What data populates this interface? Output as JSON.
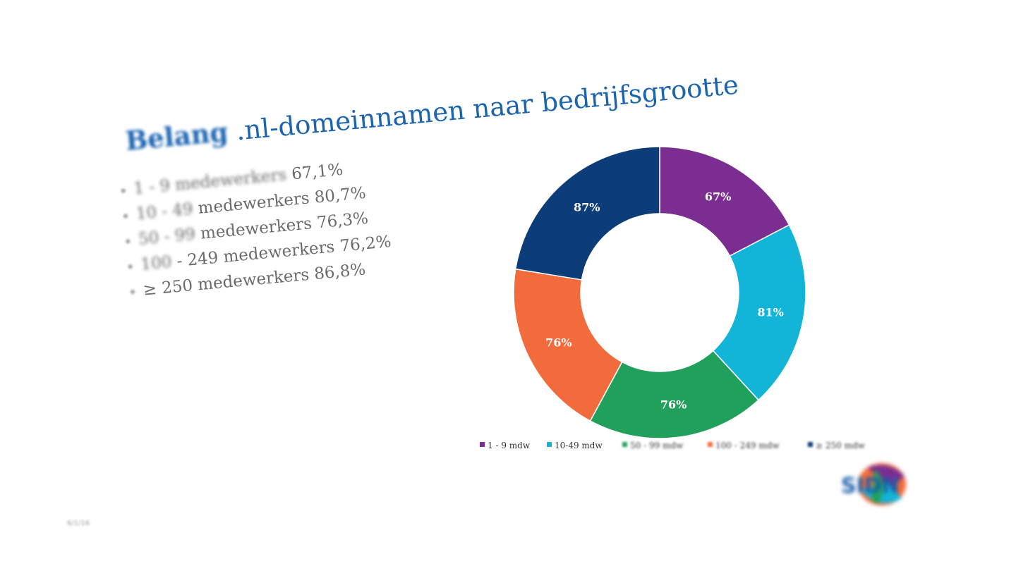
{
  "slide": {
    "title": ".nl-domeinnamen naar bedrijfsgrootte",
    "title_blurred_prefix": "Belang",
    "bullets": [
      {
        "blurred": "1 - 9 medewerkers",
        "text": " 67,1%"
      },
      {
        "blurred": "10 - 49",
        "text": " medewerkers 80,7%"
      },
      {
        "blurred": "50 - 99",
        "text": " medewerkers 76,3%"
      },
      {
        "blurred": "100",
        "text": " - 249 medewerkers 76,2%"
      },
      {
        "blurred": "",
        "text": "≥ 250 medewerkers 86,8%"
      }
    ],
    "footer": "6/1/16",
    "logo_text": "SIDN"
  },
  "chart_data": {
    "type": "pie",
    "donut": true,
    "categories": [
      "1 - 9 mdw",
      "10-49 mdw",
      "50 - 99 mdw",
      "100 - 249 mdw",
      "≥ 250 mdw"
    ],
    "values": [
      67.1,
      80.7,
      76.3,
      76.2,
      86.8
    ],
    "data_labels": [
      "67%",
      "81%",
      "76%",
      "76%",
      "87%"
    ],
    "colors": [
      "#7b2d91",
      "#12b5d8",
      "#21a05c",
      "#f26b3c",
      "#0c3d78"
    ],
    "legend_position": "bottom",
    "legend_blurred_from_index": 2
  }
}
